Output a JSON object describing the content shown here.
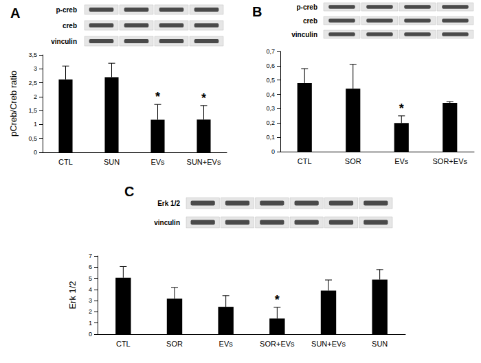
{
  "chart_data": [
    {
      "type": "bar",
      "title": "A",
      "ylabel": "pCreb/Creb ratio",
      "blot_labels": [
        "p-creb",
        "creb",
        "vinculin"
      ],
      "categories": [
        "CTL",
        "SUN",
        "EVs",
        "SUN+EVs"
      ],
      "values": [
        2.62,
        2.7,
        1.17,
        1.18
      ],
      "errors": [
        0.48,
        0.5,
        0.55,
        0.5
      ],
      "color": "#000000",
      "ylim": [
        0,
        3.5
      ],
      "yticks": [
        0,
        {
          "value": 0.5,
          "label": "0,5"
        },
        1,
        {
          "value": 1.5,
          "label": "1,5"
        },
        2,
        {
          "value": 2.5,
          "label": "2,5"
        },
        3,
        {
          "value": 3.5,
          "label": "3,5"
        }
      ],
      "annotations": [
        {
          "category": "EVs",
          "text": "*"
        },
        {
          "category": "SUN+EVs",
          "text": "*"
        }
      ],
      "grid": false
    },
    {
      "type": "bar",
      "title": "B",
      "blot_labels": [
        "p-creb",
        "creb",
        "vinculin"
      ],
      "categories": [
        "CTL",
        "SOR",
        "EVs",
        "SOR+EVs"
      ],
      "values": [
        0.48,
        0.44,
        0.2,
        0.34
      ],
      "errors": [
        0.1,
        0.17,
        0.05,
        0.01
      ],
      "color": "#000000",
      "ylim": [
        0,
        0.7
      ],
      "yticks": [
        0,
        {
          "value": 0.1,
          "label": "0,1"
        },
        {
          "value": 0.2,
          "label": "0,2"
        },
        {
          "value": 0.3,
          "label": "0,3"
        },
        {
          "value": 0.4,
          "label": "0,4"
        },
        {
          "value": 0.5,
          "label": "0,5"
        },
        {
          "value": 0.6,
          "label": "0,6"
        },
        {
          "value": 0.7,
          "label": "0,7"
        }
      ],
      "annotations": [
        {
          "category": "EVs",
          "text": "*"
        }
      ],
      "grid": false
    },
    {
      "type": "bar",
      "title": "C",
      "ylabel": "Erk 1/2",
      "blot_labels": [
        "Erk 1/2",
        "vinculin"
      ],
      "categories": [
        "CTL",
        "SOR",
        "EVs",
        "SOR+EVs",
        "SUN+EVs",
        "SUN"
      ],
      "values": [
        5.05,
        3.18,
        2.45,
        1.4,
        3.9,
        4.88
      ],
      "errors": [
        1.0,
        1.0,
        1.0,
        1.0,
        0.95,
        0.9
      ],
      "color": "#000000",
      "ylim": [
        0,
        7
      ],
      "yticks": [
        0,
        1,
        2,
        3,
        4,
        5,
        6,
        7
      ],
      "annotations": [
        {
          "category": "SOR+EVs",
          "text": "*"
        }
      ],
      "grid": false
    }
  ]
}
